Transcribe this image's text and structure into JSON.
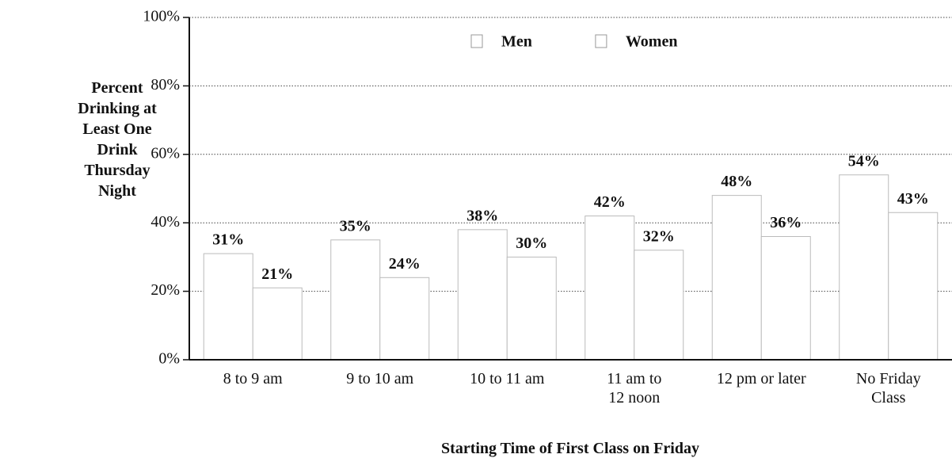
{
  "chart_data": {
    "type": "bar",
    "x_label": "Starting Time of First Class on Friday",
    "y_label": "Percent\nDrinking at\nLeast One\nDrink\nThursday\nNight",
    "categories": [
      "8 to 9 am",
      "9 to 10 am",
      "10 to 11 am",
      "11 am to\n12 noon",
      "12 pm or later",
      "No Friday\nClass"
    ],
    "series": [
      {
        "name": "Men",
        "color": "#ffffff",
        "values": [
          31,
          35,
          38,
          42,
          48,
          54
        ],
        "value_labels": [
          "31%",
          "35%",
          "38%",
          "42%",
          "48%",
          "54%"
        ]
      },
      {
        "name": "Women",
        "color": "#ffffff",
        "values": [
          21,
          24,
          30,
          32,
          36,
          43
        ],
        "value_labels": [
          "21%",
          "24%",
          "30%",
          "32%",
          "36%",
          "43%"
        ]
      }
    ],
    "ylim": [
      0,
      100
    ],
    "yticks": [
      {
        "value": 0,
        "label": "0%"
      },
      {
        "value": 20,
        "label": "20%"
      },
      {
        "value": 40,
        "label": "40%"
      },
      {
        "value": 60,
        "label": "60%"
      },
      {
        "value": 80,
        "label": "80%"
      },
      {
        "value": 100,
        "label": "100%"
      }
    ],
    "grid": true,
    "legend": "top"
  }
}
